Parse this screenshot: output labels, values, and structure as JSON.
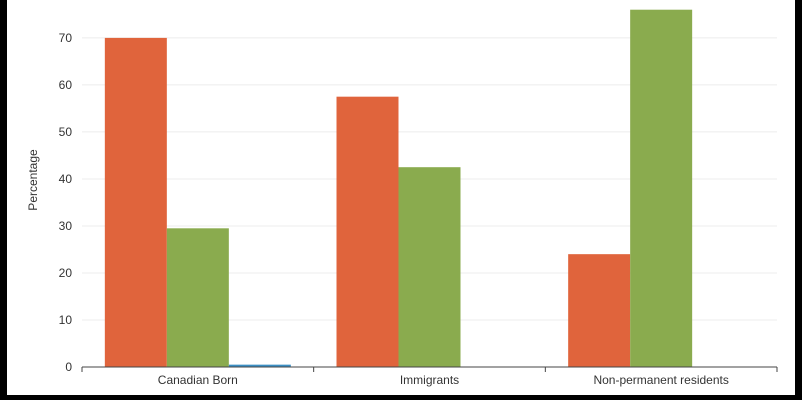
{
  "chart_data": {
    "type": "bar",
    "title": "",
    "xlabel": "",
    "ylabel": "Percentage",
    "ylim": [
      0,
      77
    ],
    "yticks": [
      0,
      10,
      20,
      30,
      40,
      50,
      60,
      70
    ],
    "grid": true,
    "legend": "none",
    "categories": [
      "Canadian Born",
      "Immigrants",
      "Non-permanent residents"
    ],
    "series": [
      {
        "color": "#e0643c",
        "values": [
          70.0,
          57.5,
          24.0
        ]
      },
      {
        "color": "#8aab4e",
        "values": [
          29.5,
          42.5,
          76.0
        ]
      },
      {
        "color": "#3b8fc4",
        "values": [
          0.5,
          0.0,
          0.0
        ]
      }
    ]
  }
}
